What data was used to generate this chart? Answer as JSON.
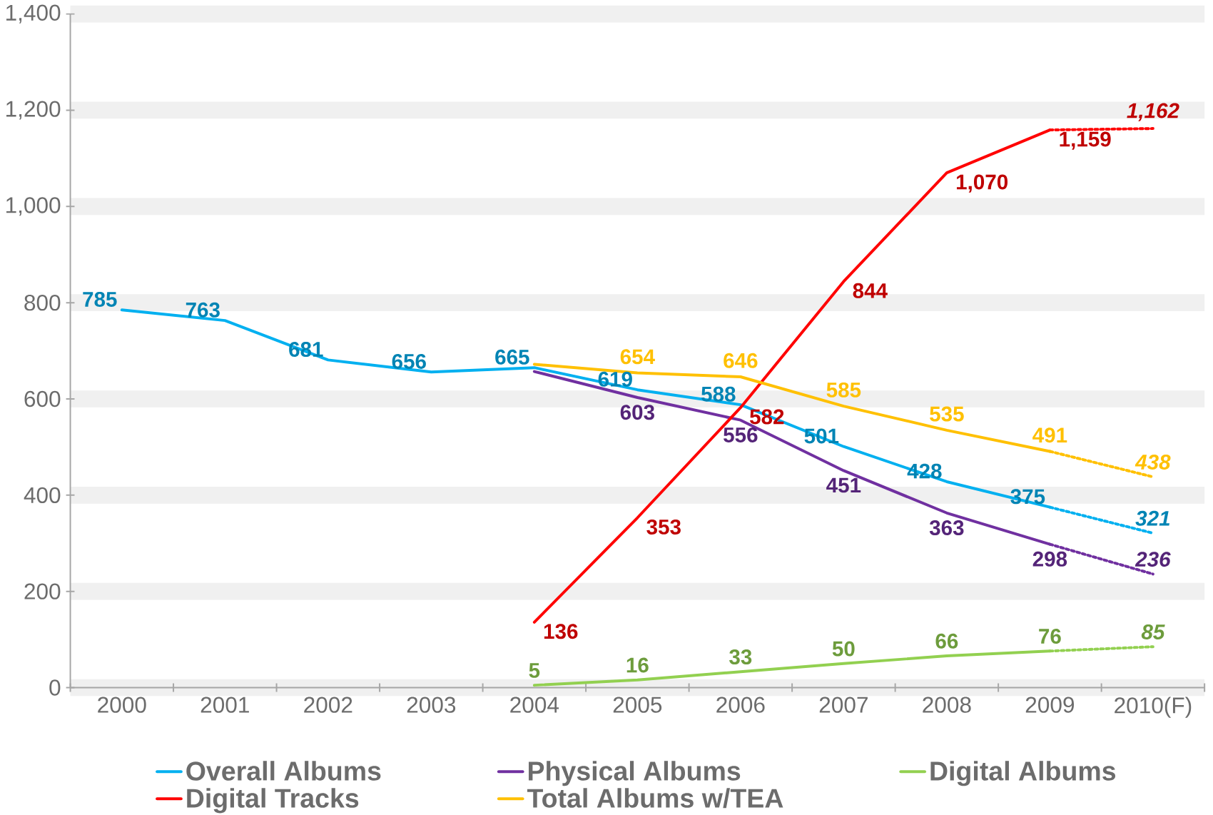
{
  "chart_data": {
    "type": "line",
    "categories": [
      "2000",
      "2001",
      "2002",
      "2003",
      "2004",
      "2005",
      "2006",
      "2007",
      "2008",
      "2009",
      "2010(F)"
    ],
    "ylim": [
      0,
      1400
    ],
    "yticks": [
      {
        "value": 0,
        "label": "0"
      },
      {
        "value": 200,
        "label": "200"
      },
      {
        "value": 400,
        "label": "400"
      },
      {
        "value": 600,
        "label": "600"
      },
      {
        "value": 800,
        "label": "800"
      },
      {
        "value": 1000,
        "label": "1,000"
      },
      {
        "value": 1200,
        "label": "1,200"
      },
      {
        "value": 1400,
        "label": "1,400"
      }
    ],
    "grid": "y",
    "legend": "bottom",
    "marker": "none",
    "series": [
      {
        "name": "Overall Albums",
        "color": "#00b0f0",
        "line_style": "solid",
        "values": [
          785,
          763,
          681,
          656,
          665,
          619,
          588,
          501,
          428,
          375,
          null
        ],
        "value_labels": [
          "785",
          "763",
          "681",
          "656",
          "665",
          "619",
          "588",
          "501",
          "428",
          "375",
          null
        ]
      },
      {
        "name": "Physical Albums",
        "color": "#7030a0",
        "line_style": "solid",
        "values": [
          null,
          null,
          null,
          null,
          657,
          603,
          556,
          451,
          363,
          298,
          null
        ],
        "value_labels": [
          null,
          null,
          null,
          null,
          null,
          "603",
          "556",
          "451",
          "363",
          "298",
          null
        ]
      },
      {
        "name": "Digital Albums",
        "color": "#92d050",
        "line_style": "solid",
        "values": [
          null,
          null,
          null,
          null,
          5,
          16,
          33,
          50,
          66,
          76,
          null
        ],
        "value_labels": [
          null,
          null,
          null,
          null,
          "5",
          "16",
          "33",
          "50",
          "66",
          "76",
          null
        ]
      },
      {
        "name": "Digital Tracks",
        "color": "#ff0000",
        "line_style": "solid",
        "values": [
          null,
          null,
          null,
          null,
          136,
          353,
          582,
          844,
          1070,
          1159,
          null
        ],
        "value_labels": [
          null,
          null,
          null,
          null,
          "136",
          "353",
          "582",
          "844",
          "1,070",
          "1,159",
          null
        ]
      },
      {
        "name": "Total Albums w/TEA",
        "color": "#ffc000",
        "line_style": "solid",
        "values": [
          null,
          null,
          null,
          null,
          672,
          654,
          646,
          585,
          535,
          491,
          null
        ],
        "value_labels": [
          null,
          null,
          null,
          null,
          null,
          "654",
          "646",
          "585",
          "535",
          "491",
          null
        ]
      },
      {
        "color": "#00b0f0",
        "line_style": "dotted",
        "values": [
          null,
          null,
          null,
          null,
          null,
          null,
          null,
          null,
          null,
          375,
          321
        ],
        "value_labels": [
          null,
          null,
          null,
          null,
          null,
          null,
          null,
          null,
          null,
          null,
          "321"
        ]
      },
      {
        "color": "#7030a0",
        "line_style": "dotted",
        "values": [
          null,
          null,
          null,
          null,
          null,
          null,
          null,
          null,
          null,
          298,
          236
        ],
        "value_labels": [
          null,
          null,
          null,
          null,
          null,
          null,
          null,
          null,
          null,
          null,
          "236"
        ]
      },
      {
        "color": "#92d050",
        "line_style": "dotted",
        "values": [
          null,
          null,
          null,
          null,
          null,
          null,
          null,
          null,
          null,
          76,
          85
        ],
        "value_labels": [
          null,
          null,
          null,
          null,
          null,
          null,
          null,
          null,
          null,
          null,
          "85"
        ]
      },
      {
        "color": "#ff0000",
        "line_style": "dotted",
        "values": [
          null,
          null,
          null,
          null,
          null,
          null,
          null,
          null,
          null,
          1159,
          1162
        ],
        "value_labels": [
          null,
          null,
          null,
          null,
          null,
          null,
          null,
          null,
          null,
          null,
          "1,162"
        ]
      },
      {
        "color": "#ffc000",
        "line_style": "dotted",
        "values": [
          null,
          null,
          null,
          null,
          null,
          null,
          null,
          null,
          null,
          491,
          438
        ],
        "value_labels": [
          null,
          null,
          null,
          null,
          null,
          null,
          null,
          null,
          null,
          null,
          "438"
        ]
      }
    ]
  }
}
